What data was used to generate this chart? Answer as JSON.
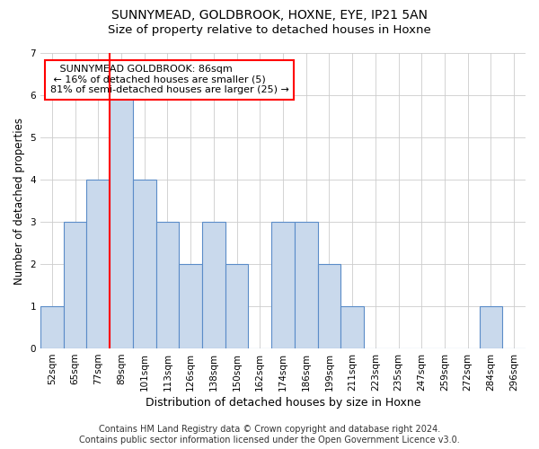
{
  "title": "SUNNYMEAD, GOLDBROOK, HOXNE, EYE, IP21 5AN",
  "subtitle": "Size of property relative to detached houses in Hoxne",
  "xlabel": "Distribution of detached houses by size in Hoxne",
  "ylabel": "Number of detached properties",
  "categories": [
    "52sqm",
    "65sqm",
    "77sqm",
    "89sqm",
    "101sqm",
    "113sqm",
    "126sqm",
    "138sqm",
    "150sqm",
    "162sqm",
    "174sqm",
    "186sqm",
    "199sqm",
    "211sqm",
    "223sqm",
    "235sqm",
    "247sqm",
    "259sqm",
    "272sqm",
    "284sqm",
    "296sqm"
  ],
  "values": [
    1,
    3,
    4,
    6,
    4,
    3,
    2,
    3,
    2,
    0,
    3,
    3,
    2,
    1,
    0,
    0,
    0,
    0,
    0,
    1,
    0
  ],
  "bar_color": "#c9d9ec",
  "bar_edge_color": "#5b8cc8",
  "bar_edge_width": 0.8,
  "highlight_index": 3,
  "annotation_text": "   SUNNYMEAD GOLDBROOK: 86sqm\n ← 16% of detached houses are smaller (5)\n81% of semi-detached houses are larger (25) →",
  "annotation_box_color": "white",
  "annotation_box_edge_color": "red",
  "ylim": [
    0,
    7
  ],
  "yticks": [
    0,
    1,
    2,
    3,
    4,
    5,
    6,
    7
  ],
  "grid_color": "#cccccc",
  "background_color": "white",
  "footer_line1": "Contains HM Land Registry data © Crown copyright and database right 2024.",
  "footer_line2": "Contains public sector information licensed under the Open Government Licence v3.0.",
  "title_fontsize": 10,
  "subtitle_fontsize": 9.5,
  "xlabel_fontsize": 9,
  "ylabel_fontsize": 8.5,
  "tick_fontsize": 7.5,
  "annotation_fontsize": 8,
  "footer_fontsize": 7
}
